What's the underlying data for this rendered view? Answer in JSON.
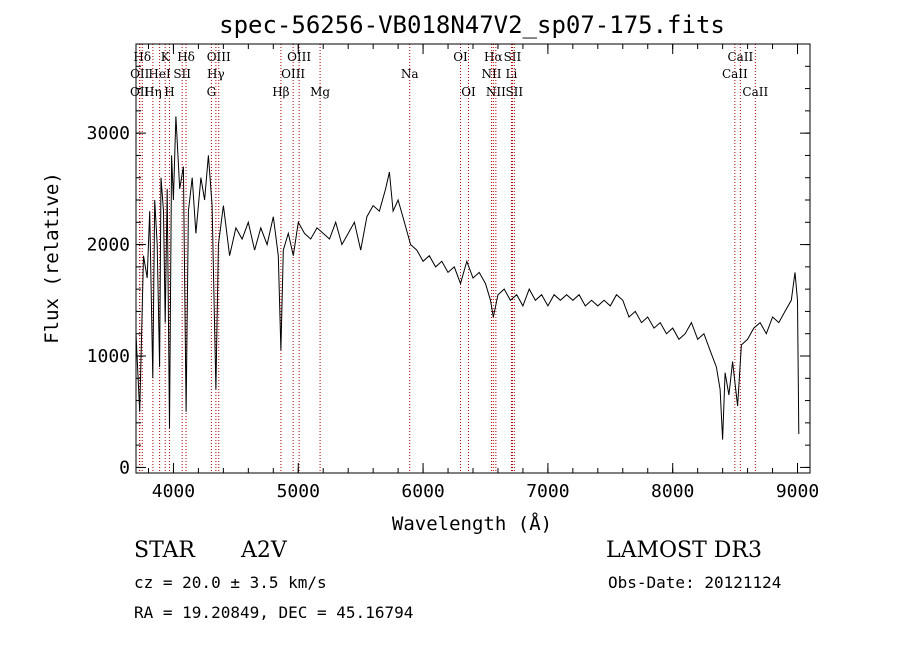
{
  "chart_data": {
    "type": "line",
    "title": "spec-56256-VB018N47V2_sp07-175.fits",
    "xlabel": "Wavelength (Å)",
    "ylabel": "Flux (relative)",
    "xlim": [
      3700,
      9100
    ],
    "ylim": [
      -50,
      3800
    ],
    "xticks": [
      {
        "v": 4000,
        "label": "4000"
      },
      {
        "v": 5000,
        "label": "5000"
      },
      {
        "v": 6000,
        "label": "6000"
      },
      {
        "v": 7000,
        "label": "7000"
      },
      {
        "v": 8000,
        "label": "8000"
      },
      {
        "v": 9000,
        "label": "9000"
      }
    ],
    "yticks": [
      {
        "v": 0,
        "label": "0"
      },
      {
        "v": 1000,
        "label": "1000"
      },
      {
        "v": 2000,
        "label": "2000"
      },
      {
        "v": 3000,
        "label": "3000"
      }
    ],
    "x_minor_step": 200,
    "y_minor_step": 200,
    "line_color": "#000000",
    "marker_color": "#b00000",
    "series": [
      {
        "values": [
          [
            3700,
            1200
          ],
          [
            3730,
            500
          ],
          [
            3760,
            1900
          ],
          [
            3790,
            1700
          ],
          [
            3810,
            2300
          ],
          [
            3835,
            800
          ],
          [
            3850,
            2400
          ],
          [
            3870,
            2000
          ],
          [
            3889,
            900
          ],
          [
            3900,
            2600
          ],
          [
            3920,
            2300
          ],
          [
            3934,
            1300
          ],
          [
            3950,
            2500
          ],
          [
            3968,
            350
          ],
          [
            3985,
            2800
          ],
          [
            4000,
            2400
          ],
          [
            4020,
            3150
          ],
          [
            4050,
            2500
          ],
          [
            4080,
            2700
          ],
          [
            4101,
            500
          ],
          [
            4120,
            2300
          ],
          [
            4150,
            2600
          ],
          [
            4180,
            2100
          ],
          [
            4220,
            2600
          ],
          [
            4250,
            2400
          ],
          [
            4280,
            2800
          ],
          [
            4310,
            2350
          ],
          [
            4340,
            700
          ],
          [
            4360,
            2000
          ],
          [
            4400,
            2350
          ],
          [
            4450,
            1900
          ],
          [
            4500,
            2150
          ],
          [
            4550,
            2050
          ],
          [
            4600,
            2200
          ],
          [
            4650,
            1950
          ],
          [
            4700,
            2150
          ],
          [
            4750,
            2000
          ],
          [
            4800,
            2250
          ],
          [
            4840,
            1900
          ],
          [
            4861,
            1050
          ],
          [
            4880,
            1950
          ],
          [
            4920,
            2100
          ],
          [
            4960,
            1900
          ],
          [
            5000,
            2200
          ],
          [
            5050,
            2100
          ],
          [
            5100,
            2050
          ],
          [
            5150,
            2150
          ],
          [
            5200,
            2100
          ],
          [
            5250,
            2050
          ],
          [
            5300,
            2200
          ],
          [
            5350,
            2000
          ],
          [
            5400,
            2100
          ],
          [
            5450,
            2200
          ],
          [
            5500,
            1950
          ],
          [
            5550,
            2250
          ],
          [
            5600,
            2350
          ],
          [
            5650,
            2300
          ],
          [
            5700,
            2500
          ],
          [
            5730,
            2650
          ],
          [
            5760,
            2300
          ],
          [
            5800,
            2400
          ],
          [
            5850,
            2200
          ],
          [
            5900,
            2000
          ],
          [
            5950,
            1950
          ],
          [
            6000,
            1850
          ],
          [
            6050,
            1900
          ],
          [
            6100,
            1800
          ],
          [
            6150,
            1850
          ],
          [
            6200,
            1750
          ],
          [
            6250,
            1800
          ],
          [
            6300,
            1650
          ],
          [
            6350,
            1850
          ],
          [
            6400,
            1700
          ],
          [
            6450,
            1750
          ],
          [
            6500,
            1650
          ],
          [
            6540,
            1500
          ],
          [
            6563,
            1350
          ],
          [
            6600,
            1550
          ],
          [
            6650,
            1600
          ],
          [
            6700,
            1500
          ],
          [
            6750,
            1550
          ],
          [
            6800,
            1450
          ],
          [
            6850,
            1600
          ],
          [
            6900,
            1500
          ],
          [
            6950,
            1550
          ],
          [
            7000,
            1450
          ],
          [
            7050,
            1550
          ],
          [
            7100,
            1500
          ],
          [
            7150,
            1550
          ],
          [
            7200,
            1500
          ],
          [
            7250,
            1550
          ],
          [
            7300,
            1450
          ],
          [
            7350,
            1500
          ],
          [
            7400,
            1450
          ],
          [
            7450,
            1500
          ],
          [
            7500,
            1450
          ],
          [
            7550,
            1550
          ],
          [
            7600,
            1500
          ],
          [
            7650,
            1350
          ],
          [
            7700,
            1400
          ],
          [
            7750,
            1300
          ],
          [
            7800,
            1350
          ],
          [
            7850,
            1250
          ],
          [
            7900,
            1300
          ],
          [
            7950,
            1200
          ],
          [
            8000,
            1250
          ],
          [
            8050,
            1150
          ],
          [
            8100,
            1200
          ],
          [
            8150,
            1300
          ],
          [
            8200,
            1150
          ],
          [
            8250,
            1200
          ],
          [
            8300,
            1050
          ],
          [
            8350,
            900
          ],
          [
            8380,
            700
          ],
          [
            8400,
            250
          ],
          [
            8420,
            850
          ],
          [
            8450,
            650
          ],
          [
            8480,
            950
          ],
          [
            8500,
            750
          ],
          [
            8520,
            550
          ],
          [
            8550,
            1100
          ],
          [
            8600,
            1150
          ],
          [
            8650,
            1250
          ],
          [
            8700,
            1300
          ],
          [
            8750,
            1200
          ],
          [
            8800,
            1350
          ],
          [
            8850,
            1300
          ],
          [
            8900,
            1400
          ],
          [
            8950,
            1500
          ],
          [
            8980,
            1750
          ],
          [
            9000,
            1500
          ],
          [
            9010,
            300
          ]
        ]
      }
    ],
    "lines": [
      {
        "label": "Hδ",
        "x": 3750,
        "row": 1
      },
      {
        "label": "OII",
        "x": 3730,
        "row": 2
      },
      {
        "label": "OII",
        "x": 3729,
        "row": 3
      },
      {
        "label": "K",
        "x": 3934,
        "row": 1
      },
      {
        "label": "HeI",
        "x": 3889,
        "row": 2
      },
      {
        "label": "Hη",
        "x": 3835,
        "row": 3
      },
      {
        "label": "SII",
        "x": 4070,
        "row": 2
      },
      {
        "label": "H",
        "x": 3968,
        "row": 3
      },
      {
        "label": "Hδ",
        "x": 4101,
        "row": 1
      },
      {
        "label": "OIII",
        "x": 4363,
        "row": 1
      },
      {
        "label": "Hγ",
        "x": 4340,
        "row": 2
      },
      {
        "label": "G",
        "x": 4304,
        "row": 3
      },
      {
        "label": "OIII",
        "x": 5007,
        "row": 1
      },
      {
        "label": "OIII",
        "x": 4959,
        "row": 2
      },
      {
        "label": "Hβ",
        "x": 4861,
        "row": 3
      },
      {
        "label": "Mg",
        "x": 5175,
        "row": 3
      },
      {
        "label": "Na",
        "x": 5893,
        "row": 2
      },
      {
        "label": "OI",
        "x": 6300,
        "row": 1
      },
      {
        "label": "OI",
        "x": 6364,
        "row": 3
      },
      {
        "label": "Hα",
        "x": 6563,
        "row": 1
      },
      {
        "label": "NII",
        "x": 6548,
        "row": 2
      },
      {
        "label": "NII",
        "x": 6583,
        "row": 3
      },
      {
        "label": "SII",
        "x": 6716,
        "row": 1
      },
      {
        "label": "Li",
        "x": 6708,
        "row": 2
      },
      {
        "label": "SII",
        "x": 6731,
        "row": 3
      },
      {
        "label": "CaII",
        "x": 8542,
        "row": 1
      },
      {
        "label": "CaII",
        "x": 8498,
        "row": 2
      },
      {
        "label": "CaII",
        "x": 8662,
        "row": 3
      }
    ]
  },
  "info": {
    "object_class": "STAR",
    "subclass": "A2V",
    "survey": "LAMOST DR3",
    "redshift": "cz = 20.0 ± 3.5 km/s",
    "obs_date": "Obs-Date: 20121124",
    "coords": "RA =  19.20849, DEC =  45.16794"
  }
}
